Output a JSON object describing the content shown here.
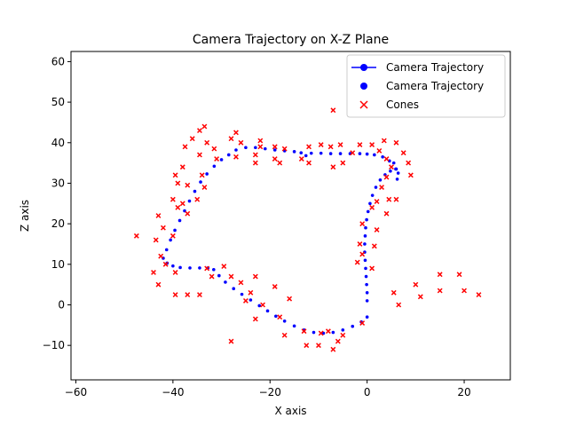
{
  "chart_data": {
    "type": "scatter",
    "title": "Camera Trajectory on X-Z Plane",
    "xlabel": "X axis",
    "ylabel": "Z axis",
    "xlim": [
      -61,
      29.5
    ],
    "ylim": [
      -18.5,
      62.5
    ],
    "xticks": [
      -60,
      -40,
      -20,
      0,
      20
    ],
    "yticks": [
      -10,
      0,
      10,
      20,
      30,
      40,
      50,
      60
    ],
    "grid": false,
    "legend_position": "top-right",
    "colors": {
      "trajectory": "#0000ff",
      "cones": "#ff0000"
    },
    "series": [
      {
        "name": "Camera Trajectory",
        "kind": "line",
        "marker": "circle"
      },
      {
        "name": "Camera Trajectory",
        "kind": "scatter",
        "marker": "circle",
        "points": [
          [
            0,
            1
          ],
          [
            0,
            3
          ],
          [
            -0.1,
            5
          ],
          [
            -0.2,
            7
          ],
          [
            -0.3,
            9
          ],
          [
            -0.4,
            11
          ],
          [
            -0.5,
            13
          ],
          [
            -0.5,
            15
          ],
          [
            -0.4,
            17
          ],
          [
            -0.3,
            19
          ],
          [
            -0.1,
            21
          ],
          [
            0.2,
            23
          ],
          [
            0.6,
            25
          ],
          [
            1.1,
            27
          ],
          [
            1.8,
            29
          ],
          [
            2.7,
            30.8
          ],
          [
            3.7,
            32.1
          ],
          [
            4.8,
            33
          ],
          [
            5.9,
            33.5
          ],
          [
            6.4,
            32.5
          ],
          [
            6.2,
            31
          ],
          [
            6,
            33.5
          ],
          [
            5.5,
            35
          ],
          [
            4.6,
            35.5
          ],
          [
            3.2,
            36.5
          ],
          [
            1.5,
            37
          ],
          [
            0,
            37.2
          ],
          [
            -1.5,
            37.3
          ],
          [
            -3.5,
            37.3
          ],
          [
            -5.5,
            37.3
          ],
          [
            -7.5,
            37.3
          ],
          [
            -9.5,
            37.4
          ],
          [
            -11.5,
            37.4
          ],
          [
            -12.6,
            36.8
          ],
          [
            -13.6,
            37.5
          ],
          [
            -15,
            37.8
          ],
          [
            -17,
            38
          ],
          [
            -19,
            38.2
          ],
          [
            -21,
            38.5
          ],
          [
            -23,
            38.8
          ],
          [
            -25,
            38.8
          ],
          [
            -27,
            38.2
          ],
          [
            -28.5,
            37
          ],
          [
            -30,
            35.8
          ],
          [
            -31.5,
            34.2
          ],
          [
            -33,
            32.3
          ],
          [
            -34.3,
            30.3
          ],
          [
            -35.5,
            28
          ],
          [
            -36.6,
            25.6
          ],
          [
            -37.6,
            23.2
          ],
          [
            -38.6,
            20.8
          ],
          [
            -39.6,
            18.4
          ],
          [
            -40.5,
            16
          ],
          [
            -41.3,
            13.6
          ],
          [
            -42,
            11.5
          ],
          [
            -41.2,
            10.3
          ],
          [
            -40,
            9.6
          ],
          [
            -38.5,
            9.2
          ],
          [
            -36.5,
            9.1
          ],
          [
            -34.5,
            9.1
          ],
          [
            -32.8,
            9.1
          ],
          [
            -31.6,
            8.7
          ],
          [
            -30.5,
            7.2
          ],
          [
            -29.2,
            5.6
          ],
          [
            -27.5,
            4
          ],
          [
            -25.8,
            2.6
          ],
          [
            -24,
            1.2
          ],
          [
            -22.2,
            -0.2
          ],
          [
            -20.5,
            -1.5
          ],
          [
            -18.8,
            -2.8
          ],
          [
            -17,
            -4
          ],
          [
            -15,
            -5.2
          ],
          [
            -13,
            -6.2
          ],
          [
            -11,
            -6.8
          ],
          [
            -9,
            -7
          ],
          [
            -7,
            -6.8
          ],
          [
            -5,
            -6.2
          ],
          [
            -3,
            -5.3
          ],
          [
            -1.2,
            -4.2
          ],
          [
            0,
            -3
          ]
        ]
      },
      {
        "name": "Cones",
        "kind": "scatter",
        "marker": "x",
        "points": [
          [
            -47.5,
            17
          ],
          [
            -43.5,
            16
          ],
          [
            -43,
            22
          ],
          [
            -42,
            19
          ],
          [
            -42.5,
            12
          ],
          [
            -41.5,
            10
          ],
          [
            -44,
            8
          ],
          [
            -43,
            5
          ],
          [
            -40,
            26
          ],
          [
            -39.5,
            32
          ],
          [
            -39,
            30
          ],
          [
            -39,
            24
          ],
          [
            -38,
            25
          ],
          [
            -40,
            17
          ],
          [
            -39.5,
            8
          ],
          [
            -39.5,
            2.5
          ],
          [
            -37,
            2.5
          ],
          [
            -34.5,
            2.5
          ],
          [
            -38,
            34
          ],
          [
            -37.5,
            39
          ],
          [
            -36,
            41
          ],
          [
            -34.5,
            43
          ],
          [
            -33.5,
            44
          ],
          [
            -33,
            40
          ],
          [
            -31.5,
            38.5
          ],
          [
            -31,
            36
          ],
          [
            -34.5,
            37
          ],
          [
            -34,
            32
          ],
          [
            -33.5,
            29
          ],
          [
            -35,
            26
          ],
          [
            -37,
            22.5
          ],
          [
            -37,
            29.5
          ],
          [
            -28,
            41
          ],
          [
            -27,
            42.5
          ],
          [
            -26,
            40
          ],
          [
            -27,
            36.5
          ],
          [
            -23,
            37
          ],
          [
            -22,
            39
          ],
          [
            -22,
            40.5
          ],
          [
            -23,
            35
          ],
          [
            -19,
            39
          ],
          [
            -19,
            36
          ],
          [
            -18,
            35
          ],
          [
            -17,
            38.5
          ],
          [
            -13.5,
            36
          ],
          [
            -12,
            35
          ],
          [
            -12,
            39
          ],
          [
            -9.5,
            39.5
          ],
          [
            -7.5,
            39
          ],
          [
            -7,
            34
          ],
          [
            -5,
            35
          ],
          [
            -5.5,
            39.5
          ],
          [
            -3,
            37.5
          ],
          [
            -1.5,
            39.5
          ],
          [
            -7,
            48
          ],
          [
            1,
            39.5
          ],
          [
            2.5,
            38
          ],
          [
            3.5,
            40.5
          ],
          [
            4,
            36
          ],
          [
            5,
            34
          ],
          [
            6,
            40
          ],
          [
            7.5,
            37.5
          ],
          [
            8.5,
            35
          ],
          [
            9,
            32
          ],
          [
            4,
            31.5
          ],
          [
            3,
            29
          ],
          [
            2,
            25.5
          ],
          [
            4.5,
            26
          ],
          [
            6,
            26
          ],
          [
            1,
            24
          ],
          [
            2,
            18.5
          ],
          [
            1.5,
            14.5
          ],
          [
            -1,
            20
          ],
          [
            -1.5,
            15
          ],
          [
            -1,
            12.5
          ],
          [
            -2,
            10.5
          ],
          [
            1,
            9
          ],
          [
            4,
            22.5
          ],
          [
            5.5,
            3
          ],
          [
            6.5,
            0
          ],
          [
            10,
            5
          ],
          [
            11,
            2
          ],
          [
            15,
            7.5
          ],
          [
            15,
            3.5
          ],
          [
            19,
            7.5
          ],
          [
            20,
            3.5
          ],
          [
            23,
            2.5
          ],
          [
            -29.5,
            9.5
          ],
          [
            -32,
            7
          ],
          [
            -33,
            9
          ],
          [
            -28,
            7
          ],
          [
            -26,
            5.5
          ],
          [
            -24,
            3
          ],
          [
            -23,
            7
          ],
          [
            -25,
            1
          ],
          [
            -23,
            -3.5
          ],
          [
            -21.5,
            0
          ],
          [
            -19,
            4.5
          ],
          [
            -16,
            1.5
          ],
          [
            -18,
            -3
          ],
          [
            -17,
            -7.5
          ],
          [
            -13,
            -6.5
          ],
          [
            -12.5,
            -10
          ],
          [
            -10,
            -10
          ],
          [
            -8,
            -6.5
          ],
          [
            -5,
            -7.5
          ],
          [
            -7,
            -11
          ],
          [
            -6,
            -9
          ],
          [
            -1,
            -4.5
          ],
          [
            -28,
            -9
          ],
          [
            -9.5,
            -7
          ]
        ]
      }
    ]
  }
}
